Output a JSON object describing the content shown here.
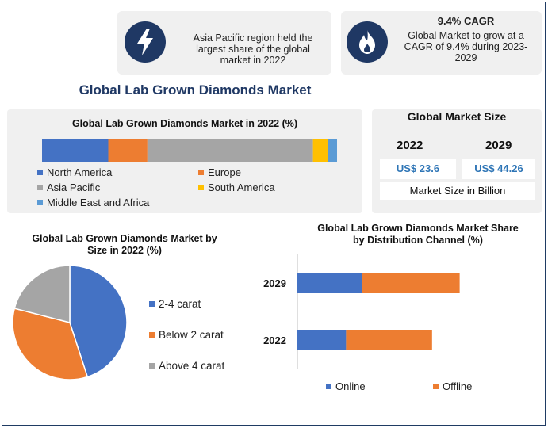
{
  "main_title": "Global Lab Grown Diamonds Market",
  "info_cards": [
    {
      "icon": "lightning-icon",
      "text": "Asia Pacific region held the largest share of the global market in 2022"
    },
    {
      "icon": "flame-icon",
      "title": "9.4% CAGR",
      "text": "Global Market to grow at a CAGR of 9.4% during 2023-2029"
    }
  ],
  "market_size": {
    "title": "Global Market Size",
    "year_a": "2022",
    "year_b": "2029",
    "value_a": "US$ 23.6",
    "value_b": "US$ 44.26",
    "unit_label": "Market Size in Billion"
  },
  "colors": {
    "north_america": "#4472c4",
    "europe": "#ed7d31",
    "asia_pacific": "#a5a5a5",
    "south_america": "#ffc000",
    "mea": "#5b9bd5",
    "navy": "#1f3864"
  },
  "chart_data": [
    {
      "type": "bar",
      "orientation": "horizontal-stacked-100",
      "title": "Global Lab Grown Diamonds Market in 2022 (%)",
      "series": [
        {
          "name": "North America",
          "values": [
            22
          ],
          "color": "#4472c4"
        },
        {
          "name": "Europe",
          "values": [
            13
          ],
          "color": "#ed7d31"
        },
        {
          "name": "Asia Pacific",
          "values": [
            55
          ],
          "color": "#a5a5a5"
        },
        {
          "name": "South America",
          "values": [
            5
          ],
          "color": "#ffc000"
        },
        {
          "name": "Middle East and Africa",
          "values": [
            3
          ],
          "color": "#5b9bd5"
        }
      ],
      "legend": [
        "North America",
        "Europe",
        "Asia Pacific",
        "South America",
        "Middle East and Africa"
      ],
      "legend_placement": "bottom"
    },
    {
      "type": "pie",
      "title": "Global Lab Grown Diamonds Market by Size in 2022 (%)",
      "labels": [
        "2-4 carat",
        "Below 2 carat",
        "Above 4 carat"
      ],
      "values": [
        45,
        34,
        21
      ],
      "colors": [
        "#4472c4",
        "#ed7d31",
        "#a5a5a5"
      ],
      "legend_placement": "right"
    },
    {
      "type": "bar",
      "orientation": "horizontal-stacked",
      "title": "Global Lab Grown Diamonds Market Share by Distribution Channel (%)",
      "categories": [
        "2029",
        "2022"
      ],
      "series": [
        {
          "name": "Online",
          "values": [
            40,
            30
          ],
          "color": "#4472c4"
        },
        {
          "name": "Offline",
          "values": [
            60,
            53
          ],
          "color": "#ed7d31"
        }
      ],
      "xlim": [
        0,
        130
      ],
      "legend_placement": "bottom"
    }
  ]
}
